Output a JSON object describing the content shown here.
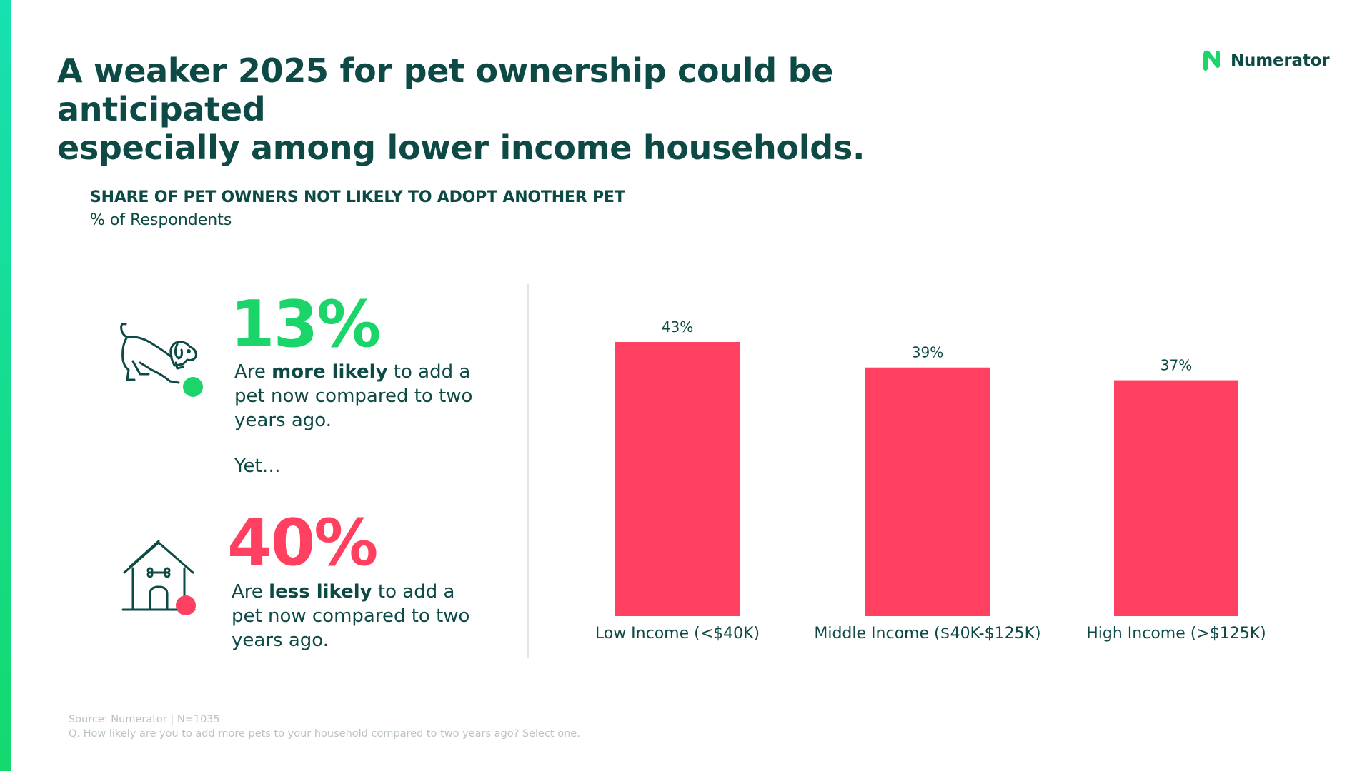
{
  "title_line_1": "A weaker 2025 for pet ownership could be anticipated",
  "title_line_2": "especially among lower income households.",
  "brand": {
    "name": "Numerator",
    "logo_icon": "numerator-n-logo",
    "color": "#1bd56a"
  },
  "chart_heading": "SHARE OF PET OWNERS NOT LIKELY TO ADOPT ANOTHER PET",
  "chart_subheading": "% of Respondents",
  "stat_more": {
    "value": "13%",
    "text_before": "Are ",
    "text_bold": "more likely",
    "text_after": " to add a pet now compared to two years ago.",
    "icon": "dog-icon",
    "color": "#1bd56a"
  },
  "connector": "Yet…",
  "stat_less": {
    "value": "40%",
    "text_before": "Are ",
    "text_bold": "less likely",
    "text_after": " to add a pet now compared to two years ago.",
    "icon": "doghouse-icon",
    "color": "#ff4060"
  },
  "chart_data": {
    "type": "bar",
    "categories": [
      "Low Income (<$40K)",
      "Middle Income ($40K-$125K)",
      "High Income (>$125K)"
    ],
    "values": [
      43,
      39,
      37
    ],
    "value_labels": [
      "43%",
      "39%",
      "37%"
    ],
    "ylim": [
      0,
      43
    ],
    "color": "#ff4060",
    "grid": false
  },
  "source_line_1": "Source: Numerator | N=1035",
  "source_line_2": "Q. How likely are you to add more pets to your household compared to two years ago? Select one."
}
